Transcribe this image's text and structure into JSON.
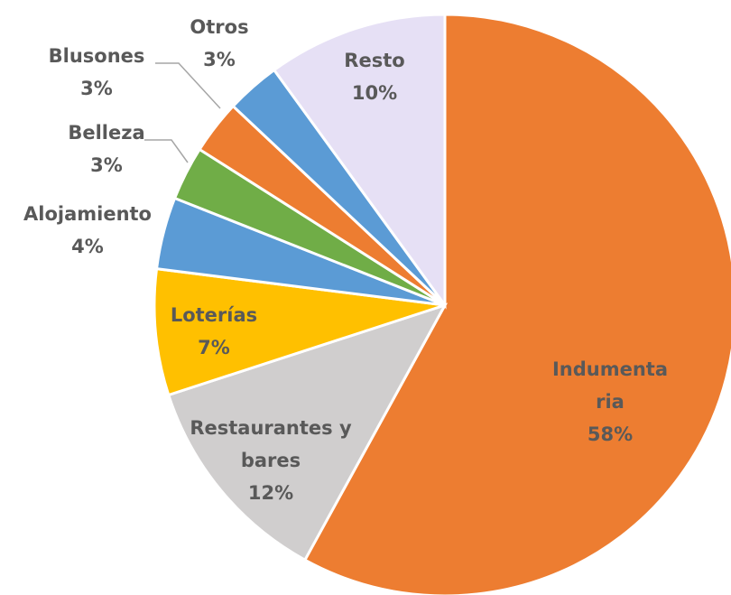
{
  "chart_data": {
    "type": "pie",
    "categories": [
      "Indumentaria",
      "Restaurantes y bares",
      "Loterías",
      "Alojamiento",
      "Belleza",
      "Blusones",
      "Otros",
      "Resto"
    ],
    "values": [
      58,
      12,
      7,
      4,
      3,
      3,
      3,
      10
    ],
    "value_labels": [
      "58%",
      "12%",
      "7%",
      "4%",
      "3%",
      "3%",
      "3%",
      "10%"
    ],
    "colors": [
      "#ed7d31",
      "#d0cece",
      "#ffc000",
      "#5b9bd5",
      "#70ad47",
      "#ed7d31",
      "#5b9bd5",
      "#e6e0f5"
    ]
  }
}
